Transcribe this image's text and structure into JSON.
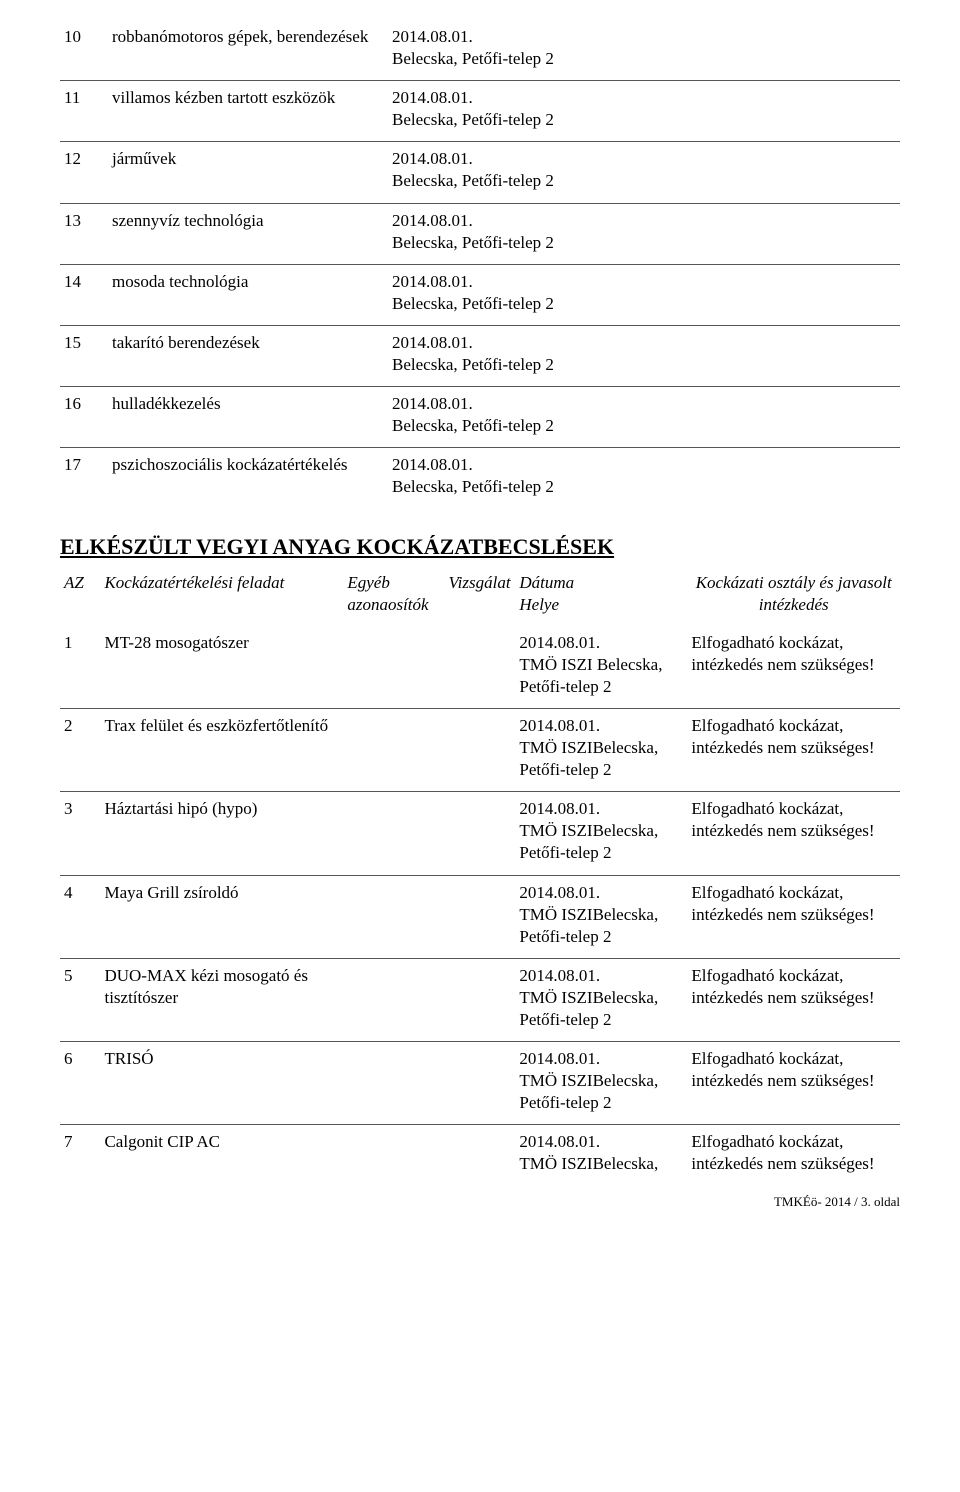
{
  "table1": {
    "rows": [
      {
        "num": "10",
        "task": "robbanómotoros gépek, berendezések",
        "date": "2014.08.01.",
        "loc": "Belecska, Petőfi-telep 2"
      },
      {
        "num": "11",
        "task": "villamos kézben tartott eszközök",
        "date": "2014.08.01.",
        "loc": "Belecska, Petőfi-telep 2"
      },
      {
        "num": "12",
        "task": "járművek",
        "date": "2014.08.01.",
        "loc": "Belecska, Petőfi-telep 2"
      },
      {
        "num": "13",
        "task": "szennyvíz technológia",
        "date": "2014.08.01.",
        "loc": "Belecska, Petőfi-telep 2"
      },
      {
        "num": "14",
        "task": "mosoda technológia",
        "date": "2014.08.01.",
        "loc": "Belecska, Petőfi-telep 2"
      },
      {
        "num": "15",
        "task": "takarító berendezések",
        "date": "2014.08.01.",
        "loc": "Belecska, Petőfi-telep 2"
      },
      {
        "num": "16",
        "task": "hulladékkezelés",
        "date": "2014.08.01.",
        "loc": "Belecska, Petőfi-telep 2"
      },
      {
        "num": "17",
        "task": "pszichoszociális kockázatértékelés",
        "date": "2014.08.01.",
        "loc": "Belecska, Petőfi-telep 2"
      }
    ]
  },
  "section2": {
    "heading": "ELKÉSZÜLT VEGYI ANYAG KOCKÁZATBECSLÉSEK",
    "headers": {
      "az": "AZ",
      "feladat": "Kockázatértékelési feladat",
      "egyeb": "Egyéb azonaosítók",
      "vizsgalat": "Vizsgálat",
      "datuma": "Dátuma",
      "helye": "Helye",
      "kockazati": "Kockázati osztály és javasolt intézkedés"
    },
    "rows": [
      {
        "num": "1",
        "task": "MT-28 mosogatószer",
        "date": "2014.08.01.",
        "loc": "TMÖ ISZI Belecska, Petőfi-telep 2",
        "risk1": "Elfogadható kockázat,",
        "risk2": "intézkedés nem szükséges!"
      },
      {
        "num": "2",
        "task": "Trax felület és eszközfertőtlenítő",
        "date": "2014.08.01.",
        "loc": "TMÖ ISZIBelecska, Petőfi-telep 2",
        "risk1": "Elfogadható kockázat,",
        "risk2": "intézkedés nem szükséges!"
      },
      {
        "num": "3",
        "task": "Háztartási hipó (hypo)",
        "date": "2014.08.01.",
        "loc": "TMÖ ISZIBelecska, Petőfi-telep 2",
        "risk1": "Elfogadható kockázat,",
        "risk2": "intézkedés nem szükséges!"
      },
      {
        "num": "4",
        "task": "Maya Grill  zsíroldó",
        "date": "2014.08.01.",
        "loc": "TMÖ ISZIBelecska, Petőfi-telep 2",
        "risk1": "Elfogadható kockázat,",
        "risk2": "intézkedés nem szükséges!"
      },
      {
        "num": "5",
        "task": "DUO-MAX kézi mosogató és tisztítószer",
        "date": "2014.08.01.",
        "loc": "TMÖ ISZIBelecska, Petőfi-telep 2",
        "risk1": "Elfogadható kockázat,",
        "risk2": "intézkedés nem szükséges!"
      },
      {
        "num": "6",
        "task": "TRISÓ",
        "date": "2014.08.01.",
        "loc": "TMÖ ISZIBelecska, Petőfi-telep 2",
        "risk1": "Elfogadható kockázat,",
        "risk2": "intézkedés nem szükséges!"
      },
      {
        "num": "7",
        "task": "Calgonit CIP AC",
        "date": "2014.08.01.",
        "loc": "TMÖ ISZIBelecska,",
        "risk1": "Elfogadható kockázat,",
        "risk2": "intézkedés nem szükséges!"
      }
    ]
  },
  "footer": "TMKÉö-  2014  / 3. oldal"
}
